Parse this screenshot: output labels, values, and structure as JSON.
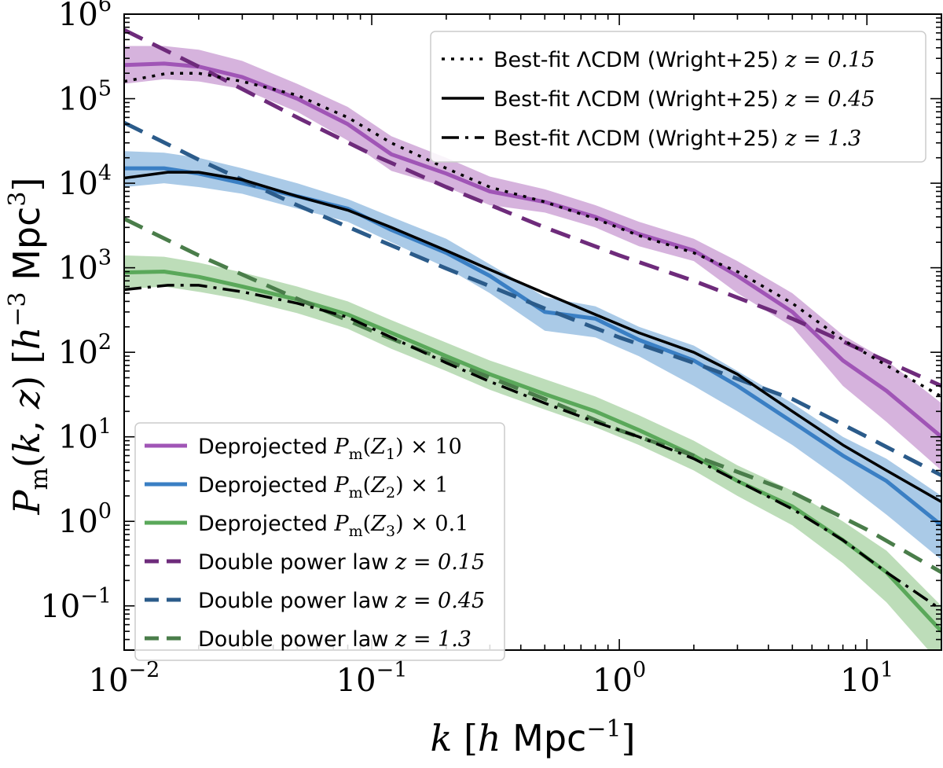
{
  "chart_data": {
    "type": "line",
    "xscale": "log",
    "yscale": "log",
    "xlim": [
      0.01,
      20
    ],
    "ylim": [
      0.03,
      1000000
    ],
    "xlabel": "k [h Mpc^-1]",
    "ylabel": "P_m(k, z) [h^-3 Mpc^3]",
    "grid": false,
    "x_tick_labels": [
      {
        "value": 0.01,
        "base": "10",
        "exp": "−2"
      },
      {
        "value": 0.1,
        "base": "10",
        "exp": "−1"
      },
      {
        "value": 1,
        "base": "10",
        "exp": "0"
      },
      {
        "value": 10,
        "base": "10",
        "exp": "1"
      }
    ],
    "y_tick_labels": [
      {
        "value": 0.1,
        "base": "10",
        "exp": "−1"
      },
      {
        "value": 1,
        "base": "10",
        "exp": "0"
      },
      {
        "value": 10,
        "base": "10",
        "exp": "1"
      },
      {
        "value": 100,
        "base": "10",
        "exp": "2"
      },
      {
        "value": 1000,
        "base": "10",
        "exp": "3"
      },
      {
        "value": 10000,
        "base": "10",
        "exp": "4"
      },
      {
        "value": 100000,
        "base": "10",
        "exp": "5"
      },
      {
        "value": 1000000,
        "base": "10",
        "exp": "6"
      }
    ],
    "series": [
      {
        "name": "Deprojected P_m(Z_1) × 10",
        "style": "band",
        "color": "#a055b6",
        "band_color": "#c89ad2",
        "x": [
          0.01,
          0.0145,
          0.02,
          0.03,
          0.05,
          0.08,
          0.12,
          0.2,
          0.3,
          0.5,
          0.8,
          1.2,
          2.0,
          3.0,
          5.0,
          8.0,
          12.0,
          20.0
        ],
        "y": [
          250000,
          260000,
          240000,
          180000,
          100000,
          50000,
          22000,
          13000,
          8000,
          6000,
          4000,
          2500,
          1600,
          800,
          300,
          80,
          35,
          10
        ],
        "y_low": [
          150000,
          170000,
          160000,
          130000,
          70000,
          32000,
          14000,
          9000,
          5500,
          4500,
          3000,
          1800,
          1200,
          500,
          200,
          40,
          15,
          4
        ],
        "y_high": [
          420000,
          420000,
          380000,
          280000,
          150000,
          80000,
          36000,
          20000,
          12000,
          8500,
          5500,
          3500,
          2200,
          1200,
          500,
          160,
          80,
          25
        ]
      },
      {
        "name": "Deprojected P_m(Z_2) × 1",
        "style": "band",
        "color": "#3a7fc4",
        "band_color": "#8eb8df",
        "x": [
          0.01,
          0.0145,
          0.02,
          0.03,
          0.05,
          0.08,
          0.12,
          0.2,
          0.3,
          0.5,
          0.8,
          1.2,
          2.0,
          3.0,
          5.0,
          8.0,
          12.0,
          20.0
        ],
        "y": [
          15000,
          15000,
          13000,
          10000,
          7000,
          5000,
          2800,
          1500,
          800,
          300,
          250,
          140,
          80,
          40,
          15,
          6,
          3,
          0.9
        ],
        "y_low": [
          9000,
          10000,
          9000,
          7500,
          5000,
          3500,
          2000,
          1000,
          500,
          180,
          150,
          90,
          40,
          20,
          8,
          3,
          1.2,
          0.35
        ],
        "y_high": [
          24000,
          23000,
          20000,
          15000,
          10000,
          6500,
          4000,
          2200,
          1100,
          450,
          350,
          200,
          120,
          60,
          25,
          10,
          5.5,
          2.0
        ]
      },
      {
        "name": "Deprojected P_m(Z_3) × 0.1",
        "style": "band",
        "color": "#5aa85a",
        "band_color": "#a7d2a2",
        "x": [
          0.01,
          0.0145,
          0.02,
          0.03,
          0.05,
          0.08,
          0.12,
          0.2,
          0.3,
          0.5,
          0.8,
          1.2,
          2.0,
          3.0,
          5.0,
          8.0,
          12.0,
          20.0
        ],
        "y": [
          880,
          900,
          780,
          600,
          420,
          280,
          170,
          90,
          55,
          32,
          20,
          12,
          6,
          3,
          1.5,
          0.6,
          0.25,
          0.05
        ],
        "y_low": [
          560,
          600,
          520,
          420,
          290,
          190,
          110,
          60,
          36,
          21,
          13,
          8,
          4,
          2,
          0.9,
          0.32,
          0.11,
          0.02
        ],
        "y_high": [
          1400,
          1350,
          1150,
          880,
          600,
          400,
          240,
          130,
          80,
          48,
          30,
          18,
          9,
          4.6,
          2.3,
          1.0,
          0.45,
          0.1
        ]
      },
      {
        "name": "Double power law z = 0.15",
        "style": "dashed",
        "color": "#6e2b7b",
        "x": [
          0.01,
          0.02,
          0.05,
          0.1,
          0.2,
          0.5,
          1,
          2,
          5,
          10,
          20
        ],
        "y": [
          650000,
          240000,
          60000,
          22000,
          9000,
          3000,
          1400,
          700,
          250,
          100,
          40
        ]
      },
      {
        "name": "Double power law z = 0.45",
        "style": "dashed",
        "color": "#2b5b8a",
        "x": [
          0.01,
          0.02,
          0.05,
          0.1,
          0.2,
          0.5,
          1,
          2,
          5,
          10,
          20
        ],
        "y": [
          52000,
          19000,
          5500,
          2300,
          980,
          330,
          150,
          75,
          28,
          10,
          3.5
        ]
      },
      {
        "name": "Double power law z = 1.3",
        "style": "dashed",
        "color": "#4a7d4a",
        "x": [
          0.01,
          0.02,
          0.05,
          0.1,
          0.2,
          0.5,
          1,
          2,
          5,
          10,
          20
        ],
        "y": [
          3800,
          1400,
          430,
          180,
          80,
          28,
          12,
          6,
          2.2,
          0.8,
          0.25
        ]
      },
      {
        "name": "Best-fit ΛCDM (Wright+25) z = 0.15",
        "style": "dotted",
        "color": "#000000",
        "x": [
          0.01,
          0.015,
          0.02,
          0.03,
          0.05,
          0.08,
          0.12,
          0.2,
          0.3,
          0.5,
          0.8,
          1.2,
          2.0,
          3.0,
          5.0,
          8.0,
          12.0,
          20.0
        ],
        "y": [
          160000,
          200000,
          200000,
          160000,
          110000,
          60000,
          30000,
          15000,
          9000,
          6000,
          3800,
          2400,
          1500,
          900,
          380,
          140,
          70,
          30
        ]
      },
      {
        "name": "Best-fit ΛCDM (Wright+25) z = 0.45",
        "style": "solid",
        "color": "#000000",
        "x": [
          0.01,
          0.015,
          0.02,
          0.03,
          0.05,
          0.08,
          0.12,
          0.2,
          0.3,
          0.5,
          0.8,
          1.2,
          2.0,
          3.0,
          5.0,
          8.0,
          12.0,
          20.0
        ],
        "y": [
          11500,
          13500,
          13500,
          11000,
          7000,
          4800,
          3000,
          1600,
          950,
          500,
          280,
          170,
          100,
          55,
          20,
          8,
          4,
          1.7
        ]
      },
      {
        "name": "Best-fit ΛCDM (Wright+25) z = 1.3",
        "style": "dashdot",
        "color": "#000000",
        "x": [
          0.01,
          0.015,
          0.02,
          0.03,
          0.05,
          0.08,
          0.12,
          0.2,
          0.3,
          0.5,
          0.8,
          1.2,
          2.0,
          3.0,
          5.0,
          8.0,
          12.0,
          20.0
        ],
        "y": [
          550,
          620,
          620,
          520,
          380,
          260,
          150,
          75,
          45,
          25,
          15,
          10,
          5.5,
          3,
          1.4,
          0.6,
          0.25,
          0.09
        ]
      }
    ],
    "legend_upper": {
      "placement": "top-right",
      "entries": [
        {
          "style": "dotted",
          "color": "#000000",
          "text": "Best-fit ΛCDM (Wright+25) ",
          "z_text": "z = 0.15"
        },
        {
          "style": "solid",
          "color": "#000000",
          "text": "Best-fit ΛCDM (Wright+25) ",
          "z_text": "z = 0.45"
        },
        {
          "style": "dashdot",
          "color": "#000000",
          "text": "Best-fit ΛCDM (Wright+25) ",
          "z_text": "z = 1.3"
        }
      ]
    },
    "legend_lower": {
      "placement": "bottom-left",
      "entries": [
        {
          "style": "thick",
          "color": "#a055b6",
          "text": "Deprojected ",
          "math": "Pm(Z1)",
          "sub": "1",
          "factor": " × 10"
        },
        {
          "style": "thick",
          "color": "#3a7fc4",
          "text": "Deprojected ",
          "math": "Pm(Z2)",
          "sub": "2",
          "factor": " × 1"
        },
        {
          "style": "thick",
          "color": "#5aa85a",
          "text": "Deprojected ",
          "math": "Pm(Z3)",
          "sub": "3",
          "factor": " × 0.1"
        },
        {
          "style": "dashed",
          "color": "#6e2b7b",
          "text": "Double power law ",
          "z_text": "z = 0.15"
        },
        {
          "style": "dashed",
          "color": "#2b5b8a",
          "text": "Double power law ",
          "z_text": "z = 0.45"
        },
        {
          "style": "dashed",
          "color": "#4a7d4a",
          "text": "Double power law ",
          "z_text": "z = 1.3"
        }
      ]
    }
  }
}
